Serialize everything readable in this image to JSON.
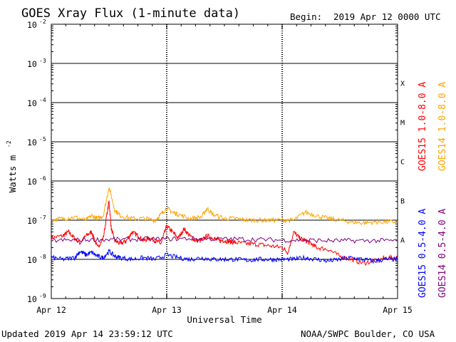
{
  "header": {
    "title": "GOES Xray Flux (1-minute data)",
    "begin_label": "Begin:",
    "begin_value": "2019 Apr 12 0000 UTC"
  },
  "footer": {
    "updated": "Updated 2019 Apr 14 23:59:12 UTC",
    "credit": "NOAA/SWPC Boulder, CO USA"
  },
  "colors": {
    "goes15_long": "#ff0000",
    "goes14_long": "#ffa500",
    "goes15_short": "#0000ff",
    "goes14_short": "#800080",
    "grid": "#000000"
  },
  "chart_data": {
    "type": "line",
    "title": "GOES Xray Flux (1-minute data)",
    "xlabel": "Universal Time",
    "ylabel": "Watts m",
    "ylabel_superscript": "-2",
    "y_scale": "log",
    "ylim": [
      1e-09,
      0.01
    ],
    "xlim": [
      "2019-04-12",
      "2019-04-15"
    ],
    "x_ticks": [
      "Apr 12",
      "Apr 13",
      "Apr 14",
      "Apr 15"
    ],
    "y_ticks": [
      {
        "base": "10",
        "exp": "-9"
      },
      {
        "base": "10",
        "exp": "-8"
      },
      {
        "base": "10",
        "exp": "-7"
      },
      {
        "base": "10",
        "exp": "-6"
      },
      {
        "base": "10",
        "exp": "-5"
      },
      {
        "base": "10",
        "exp": "-4"
      },
      {
        "base": "10",
        "exp": "-3"
      },
      {
        "base": "10",
        "exp": "-2"
      }
    ],
    "flare_classes": [
      {
        "label": "A",
        "lower": 1e-08
      },
      {
        "label": "B",
        "lower": 1e-07
      },
      {
        "label": "C",
        "lower": 1e-06
      },
      {
        "label": "M",
        "lower": 1e-05
      },
      {
        "label": "X",
        "lower": 0.0001
      }
    ],
    "grid": true,
    "legend": "right",
    "series": [
      {
        "name": "GOES15 1.0-8.0 A",
        "color": "#ff0000",
        "x_days": [
          0.0,
          0.1,
          0.15,
          0.2,
          0.25,
          0.3,
          0.35,
          0.4,
          0.45,
          0.5,
          0.52,
          0.55,
          0.6,
          0.65,
          0.7,
          0.75,
          0.8,
          0.85,
          0.9,
          0.95,
          1.0,
          1.05,
          1.1,
          1.15,
          1.2,
          1.25,
          1.3,
          1.35,
          1.4,
          1.45,
          1.5,
          1.55,
          1.6,
          1.7,
          1.8,
          1.9,
          2.0,
          2.05,
          2.1,
          2.15,
          2.2,
          2.25,
          2.3,
          2.4,
          2.5,
          2.6,
          2.7,
          2.8,
          2.9,
          3.0
        ],
        "values": [
          3.5e-08,
          4e-08,
          5e-08,
          3.5e-08,
          2.6e-08,
          4e-08,
          5e-08,
          2e-08,
          3.5e-08,
          3e-07,
          6e-08,
          3e-08,
          2.5e-08,
          3e-08,
          5e-08,
          4e-08,
          3e-08,
          3.5e-08,
          3e-08,
          2.5e-08,
          7e-08,
          5e-08,
          3.5e-08,
          6e-08,
          4e-08,
          3e-08,
          3e-08,
          4e-08,
          3.5e-08,
          3e-08,
          3e-08,
          2.8e-08,
          2.7e-08,
          2.5e-08,
          2.4e-08,
          2.2e-08,
          2e-08,
          1.5e-08,
          5e-08,
          3.5e-08,
          3e-08,
          2.5e-08,
          2e-08,
          1.8e-08,
          1.2e-08,
          1e-08,
          8e-09,
          9e-09,
          1.1e-08,
          1.1e-08
        ]
      },
      {
        "name": "GOES14 1.0-8.0 A",
        "color": "#ffa500",
        "x_days": [
          0.0,
          0.1,
          0.2,
          0.3,
          0.35,
          0.4,
          0.45,
          0.5,
          0.55,
          0.6,
          0.7,
          0.8,
          0.9,
          0.95,
          1.0,
          1.05,
          1.1,
          1.2,
          1.3,
          1.35,
          1.4,
          1.5,
          1.6,
          1.7,
          1.8,
          1.9,
          2.0,
          2.1,
          2.2,
          2.3,
          2.4,
          2.5,
          2.6,
          2.7,
          2.8,
          2.9,
          3.0
        ],
        "values": [
          1e-07,
          1.1e-07,
          1.2e-07,
          1e-07,
          1.3e-07,
          1.1e-07,
          1.3e-07,
          7e-07,
          1.8e-07,
          1.3e-07,
          1.1e-07,
          1.1e-07,
          1e-07,
          1.4e-07,
          2e-07,
          1.6e-07,
          1.4e-07,
          1.1e-07,
          1.2e-07,
          2e-07,
          1.4e-07,
          1.1e-07,
          1.1e-07,
          1e-07,
          1e-07,
          1e-07,
          1e-07,
          1e-07,
          1.6e-07,
          1.3e-07,
          1.1e-07,
          1e-07,
          9e-08,
          8.5e-08,
          9e-08,
          9e-08,
          9e-08
        ]
      },
      {
        "name": "GOES15 0.5-4.0 A",
        "color": "#0000ff",
        "x_days": [
          0.0,
          0.1,
          0.2,
          0.25,
          0.3,
          0.35,
          0.4,
          0.45,
          0.5,
          0.55,
          0.6,
          0.7,
          0.8,
          0.9,
          1.0,
          1.1,
          1.2,
          1.3,
          1.4,
          1.5,
          1.6,
          1.7,
          1.8,
          1.9,
          2.0,
          2.1,
          2.2,
          2.3,
          2.4,
          2.5,
          2.6,
          2.7,
          2.8,
          2.9,
          3.0
        ],
        "values": [
          1.1e-08,
          1e-08,
          1.1e-08,
          1.6e-08,
          1.3e-08,
          1.5e-08,
          1.2e-08,
          1.1e-08,
          1.6e-08,
          1.2e-08,
          1.1e-08,
          1e-08,
          1.1e-08,
          1e-08,
          1.3e-08,
          1.1e-08,
          1e-08,
          1.1e-08,
          1e-08,
          1e-08,
          1e-08,
          9.5e-09,
          1e-08,
          1e-08,
          1e-08,
          1e-08,
          1.1e-08,
          1e-08,
          9e-09,
          1e-08,
          1.1e-08,
          1e-08,
          9e-09,
          1e-08,
          1e-08
        ]
      },
      {
        "name": "GOES14 0.5-4.0 A",
        "color": "#800080",
        "x_days": [
          0.0,
          0.2,
          0.4,
          0.6,
          0.8,
          1.0,
          1.2,
          1.4,
          1.6,
          1.8,
          2.0,
          2.2,
          2.4,
          2.6,
          2.8,
          3.0
        ],
        "values": [
          3e-08,
          3.1e-08,
          3.2e-08,
          3.2e-08,
          3.3e-08,
          3.3e-08,
          3.4e-08,
          3.3e-08,
          3.3e-08,
          3.2e-08,
          3.1e-08,
          3.1e-08,
          3e-08,
          3e-08,
          3e-08,
          3e-08
        ]
      }
    ]
  }
}
